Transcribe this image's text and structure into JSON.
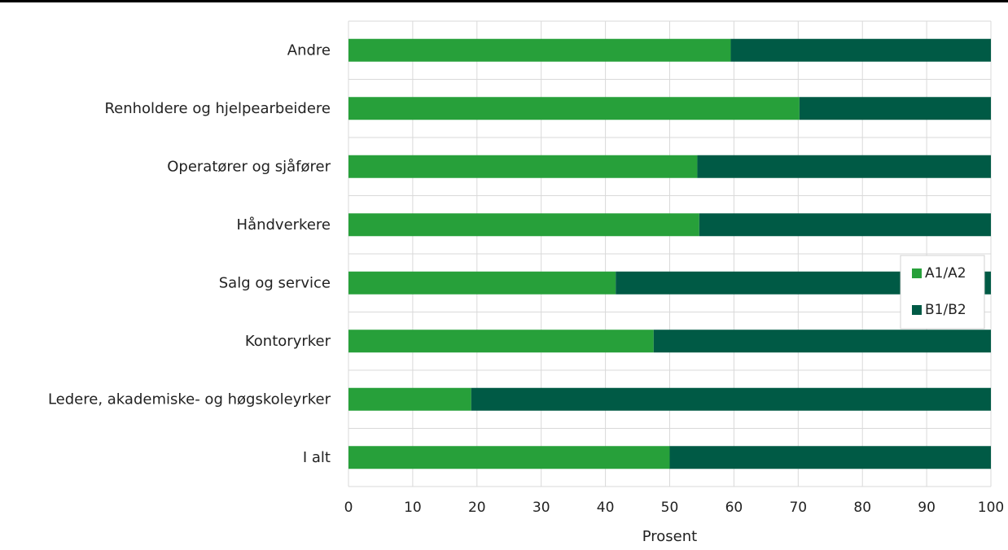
{
  "chart_data": {
    "type": "bar",
    "orientation": "horizontal",
    "stacked": "percent",
    "categories": [
      "Andre",
      "Renholdere og hjelpearbeidere",
      "Operatører og sjåfører",
      "Håndverkere",
      "Salg og service",
      "Kontoryrker",
      "Ledere, akademiske- og høgskoleyrker",
      "I alt"
    ],
    "series": [
      {
        "name": "A1/A2",
        "color": "#27a03a",
        "values": [
          59.5,
          70.2,
          54.3,
          54.6,
          41.6,
          47.5,
          19.1,
          50.0
        ]
      },
      {
        "name": "B1/B2",
        "color": "#005a45",
        "values": [
          40.5,
          29.8,
          45.7,
          45.4,
          58.4,
          52.5,
          80.9,
          50.0
        ]
      }
    ],
    "xlabel": "Prosent",
    "ylabel": "",
    "xlim": [
      0,
      100
    ],
    "xticks": [
      "0",
      "10",
      "20",
      "30",
      "40",
      "50",
      "60",
      "70",
      "80",
      "90",
      "100"
    ],
    "grid": true,
    "legend_position": "right"
  }
}
